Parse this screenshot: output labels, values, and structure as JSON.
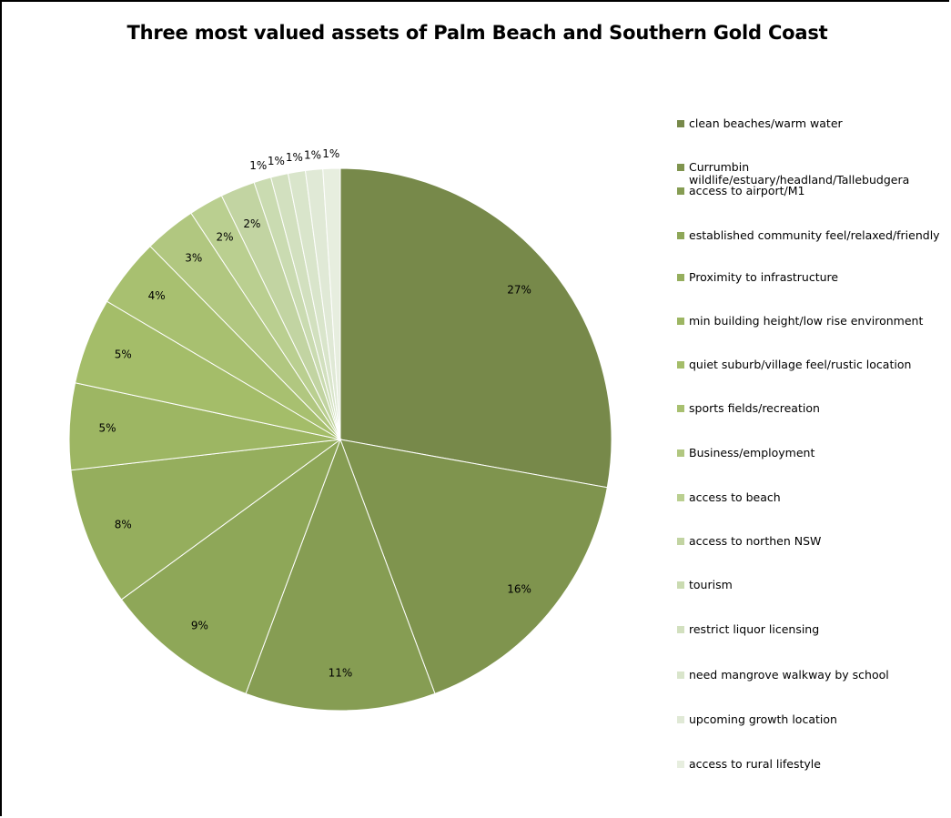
{
  "chart_data": {
    "type": "pie",
    "title": "Three most valued assets of Palm Beach and Southern Gold Coast",
    "start_angle_deg": 0,
    "direction": "clockwise",
    "legend_position": "right",
    "slices": [
      {
        "name": "clean beaches/warm water",
        "value": 27,
        "label": "27%",
        "color": "#77894a"
      },
      {
        "name": "Currumbin\nwildlife/estuary/headland/Tallebudgera",
        "value": 16,
        "label": "16%",
        "color": "#7f944e"
      },
      {
        "name": "access to airport/M1",
        "value": 11,
        "label": "11%",
        "color": "#869d53"
      },
      {
        "name": "established community feel/relaxed/friendly",
        "value": 9,
        "label": "9%",
        "color": "#8ea758"
      },
      {
        "name": "Proximity to infrastructure",
        "value": 8,
        "label": "8%",
        "color": "#95ae5d"
      },
      {
        "name": "min building height/low rise environment",
        "value": 5,
        "label": "5%",
        "color": "#9db663"
      },
      {
        "name": "quiet suburb/village feel/rustic location",
        "value": 5,
        "label": "5%",
        "color": "#a4bd69"
      },
      {
        "name": "sports fields/recreation",
        "value": 4,
        "label": "4%",
        "color": "#a8c070"
      },
      {
        "name": "Business/employment",
        "value": 3,
        "label": "3%",
        "color": "#b1c780"
      },
      {
        "name": "access to beach",
        "value": 2,
        "label": "2%",
        "color": "#bacf90"
      },
      {
        "name": "access to northen NSW",
        "value": 2,
        "label": "2%",
        "color": "#c2d4a2"
      },
      {
        "name": "tourism",
        "value": 1,
        "label": "1%",
        "color": "#cadbb1"
      },
      {
        "name": "restrict liquor licensing",
        "value": 1,
        "label": "1%",
        "color": "#d2e0bf"
      },
      {
        "name": "need mangrove walkway by school",
        "value": 1,
        "label": "1%",
        "color": "#d9e5cb"
      },
      {
        "name": "upcoming growth location",
        "value": 1,
        "label": "1%",
        "color": "#e0e9d6"
      },
      {
        "name": "access to rural lifestyle",
        "value": 1,
        "label": "1%",
        "color": "#e7eedf"
      }
    ]
  }
}
